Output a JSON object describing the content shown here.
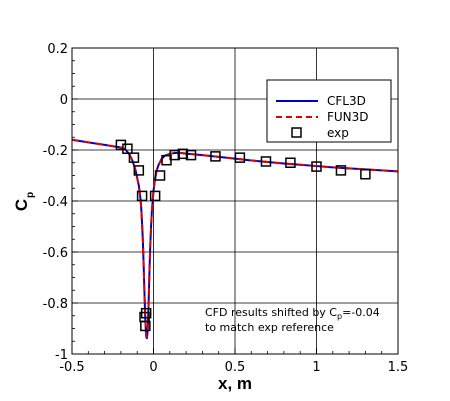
{
  "chart_data": {
    "type": "line",
    "xlabel": "x, m",
    "ylabel_main": "C",
    "ylabel_sub": "p",
    "xlim": [
      -0.5,
      1.5
    ],
    "ylim": [
      -1.0,
      0.2
    ],
    "xticks": [
      -0.5,
      0,
      0.5,
      1,
      1.5
    ],
    "xtick_labels": [
      "-0.5",
      "0",
      "0.5",
      "1",
      "1.5"
    ],
    "yticks": [
      -1,
      -0.8,
      -0.6,
      -0.4,
      -0.2,
      0,
      0.2
    ],
    "ytick_labels": [
      "-1",
      "-0.8",
      "-0.6",
      "-0.4",
      "-0.2",
      "0",
      "0.2"
    ],
    "grid": true,
    "legend_position": "upper-right",
    "annotation": {
      "line1_prefix": "CFD results shifted by C",
      "line1_sub": "p",
      "line1_suffix": "=-0.04",
      "line2": "to match exp reference"
    },
    "series": [
      {
        "name": "CFL3D",
        "style": "solid",
        "color": "#0000cc",
        "x": [
          -0.5,
          -0.4,
          -0.3,
          -0.25,
          -0.2,
          -0.17,
          -0.15,
          -0.13,
          -0.11,
          -0.1,
          -0.09,
          -0.08,
          -0.075,
          -0.07,
          -0.065,
          -0.06,
          -0.055,
          -0.05,
          -0.045,
          -0.04,
          -0.035,
          -0.03,
          -0.025,
          -0.02,
          -0.015,
          -0.01,
          0.0,
          0.01,
          0.02,
          0.03,
          0.05,
          0.07,
          0.1,
          0.13,
          0.17,
          0.2,
          0.3,
          0.4,
          0.5,
          0.6,
          0.7,
          0.8,
          0.9,
          1.0,
          1.1,
          1.2,
          1.3,
          1.4,
          1.5
        ],
        "y": [
          -0.16,
          -0.17,
          -0.18,
          -0.185,
          -0.19,
          -0.2,
          -0.215,
          -0.24,
          -0.28,
          -0.31,
          -0.34,
          -0.39,
          -0.43,
          -0.49,
          -0.56,
          -0.66,
          -0.77,
          -0.87,
          -0.93,
          -0.94,
          -0.9,
          -0.8,
          -0.68,
          -0.58,
          -0.5,
          -0.44,
          -0.36,
          -0.31,
          -0.28,
          -0.26,
          -0.235,
          -0.222,
          -0.215,
          -0.212,
          -0.212,
          -0.214,
          -0.22,
          -0.227,
          -0.234,
          -0.241,
          -0.247,
          -0.253,
          -0.258,
          -0.263,
          -0.268,
          -0.272,
          -0.276,
          -0.28,
          -0.284
        ]
      },
      {
        "name": "FUN3D",
        "style": "dashed",
        "color": "#dd0000",
        "x": [
          -0.5,
          -0.4,
          -0.3,
          -0.25,
          -0.2,
          -0.17,
          -0.15,
          -0.13,
          -0.11,
          -0.1,
          -0.09,
          -0.08,
          -0.075,
          -0.07,
          -0.065,
          -0.06,
          -0.055,
          -0.05,
          -0.045,
          -0.04,
          -0.035,
          -0.03,
          -0.025,
          -0.02,
          -0.015,
          -0.01,
          0.0,
          0.01,
          0.02,
          0.03,
          0.05,
          0.07,
          0.1,
          0.13,
          0.17,
          0.2,
          0.3,
          0.4,
          0.5,
          0.6,
          0.7,
          0.8,
          0.9,
          1.0,
          1.1,
          1.2,
          1.3,
          1.4,
          1.5
        ],
        "y": [
          -0.16,
          -0.17,
          -0.18,
          -0.185,
          -0.19,
          -0.2,
          -0.215,
          -0.24,
          -0.28,
          -0.31,
          -0.34,
          -0.39,
          -0.43,
          -0.49,
          -0.56,
          -0.66,
          -0.77,
          -0.87,
          -0.925,
          -0.935,
          -0.9,
          -0.8,
          -0.68,
          -0.58,
          -0.5,
          -0.44,
          -0.36,
          -0.31,
          -0.28,
          -0.26,
          -0.235,
          -0.222,
          -0.215,
          -0.212,
          -0.212,
          -0.214,
          -0.22,
          -0.227,
          -0.234,
          -0.241,
          -0.247,
          -0.253,
          -0.258,
          -0.263,
          -0.268,
          -0.272,
          -0.276,
          -0.28,
          -0.284
        ]
      },
      {
        "name": "exp",
        "style": "markers",
        "marker": "square",
        "color": "#000000",
        "x": [
          -0.2,
          -0.16,
          -0.12,
          -0.09,
          -0.07,
          -0.055,
          -0.05,
          -0.045,
          0.01,
          0.04,
          0.08,
          0.13,
          0.18,
          0.23,
          0.38,
          0.53,
          0.69,
          0.84,
          1.0,
          1.15,
          1.3
        ],
        "y": [
          -0.18,
          -0.195,
          -0.23,
          -0.28,
          -0.38,
          -0.855,
          -0.89,
          -0.84,
          -0.38,
          -0.3,
          -0.24,
          -0.22,
          -0.215,
          -0.22,
          -0.225,
          -0.23,
          -0.245,
          -0.25,
          -0.265,
          -0.28,
          -0.295
        ]
      }
    ]
  }
}
